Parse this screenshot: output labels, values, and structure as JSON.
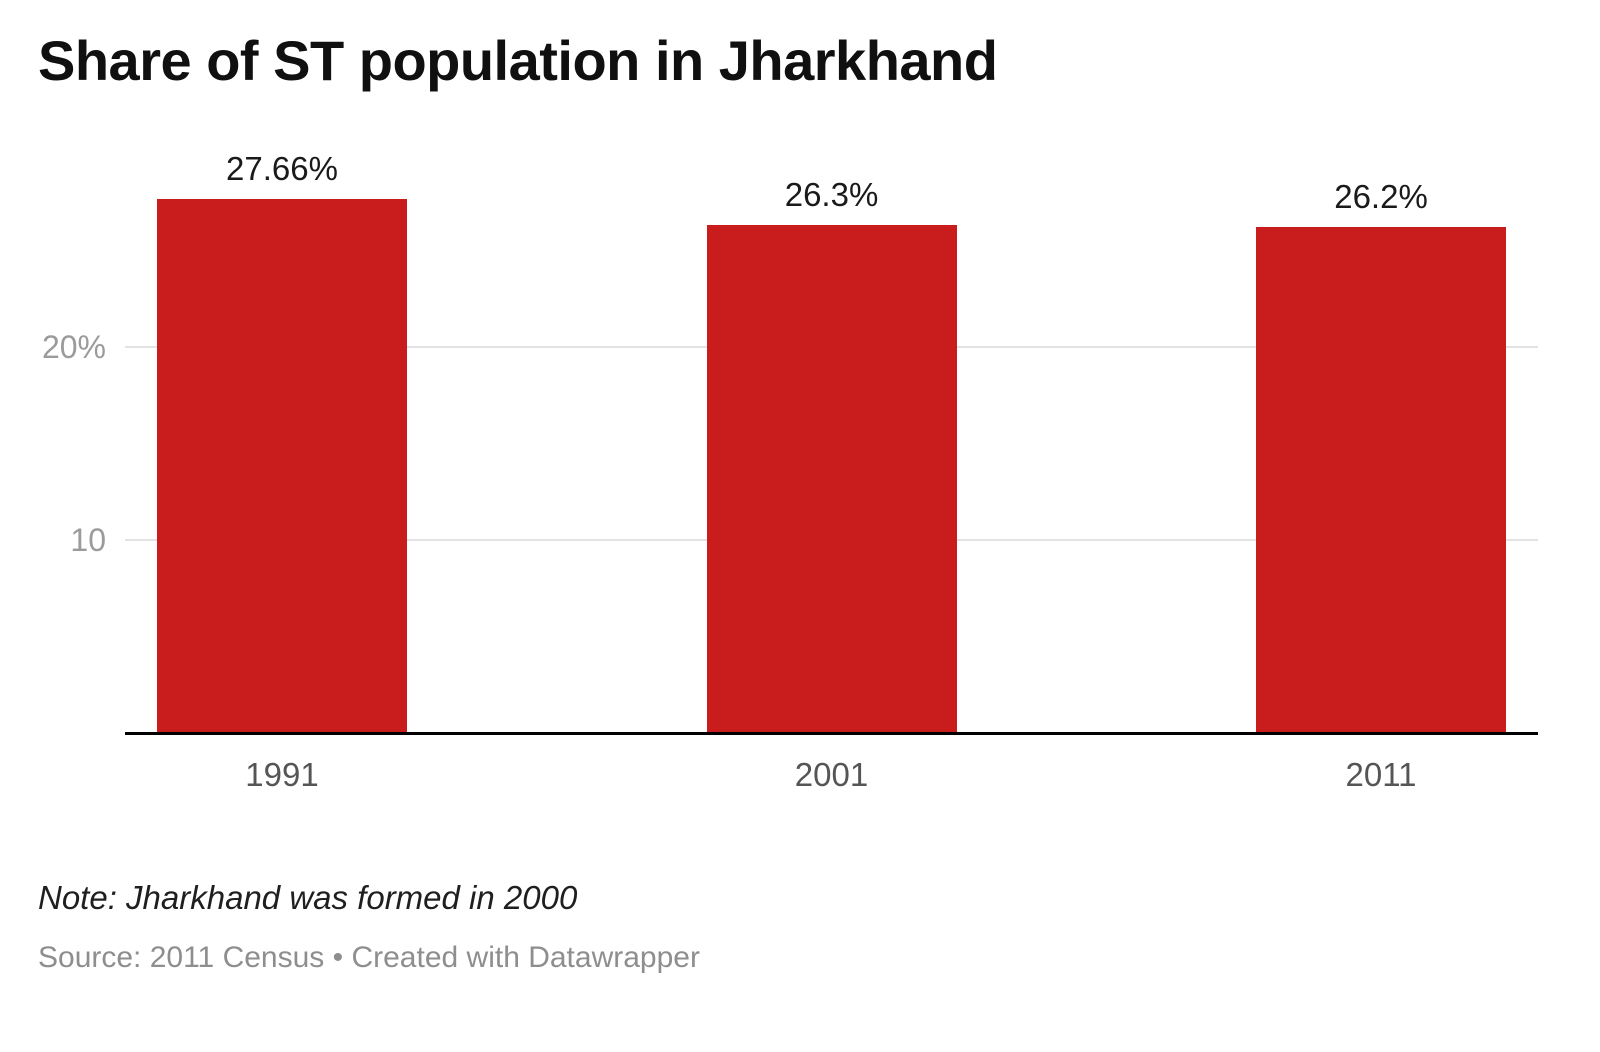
{
  "title": "Share of ST population in Jharkhand",
  "note": "Note: Jharkhand was formed in 2000",
  "source": "Source: 2011 Census • Created with Datawrapper",
  "colors": {
    "bar": "#c91c1c",
    "gridline": "#e3e3e3",
    "axis_line": "#000000",
    "ytick_text": "#9b9b9b",
    "xtick_text": "#555555"
  },
  "chart_data": {
    "type": "bar",
    "title": "Share of ST population in Jharkhand",
    "categories": [
      "1991",
      "2001",
      "2011"
    ],
    "values": [
      27.66,
      26.3,
      26.2
    ],
    "value_labels": [
      "27.66%",
      "26.3%",
      "26.2%"
    ],
    "xlabel": "",
    "ylabel": "",
    "ylim": [
      0,
      30
    ],
    "yticks": [
      {
        "value": 10,
        "label": "10"
      },
      {
        "value": 20,
        "label": "20%"
      }
    ],
    "grid": true,
    "legend": "none",
    "note": "Note: Jharkhand was formed in 2000",
    "source": "Source: 2011 Census • Created with Datawrapper"
  }
}
